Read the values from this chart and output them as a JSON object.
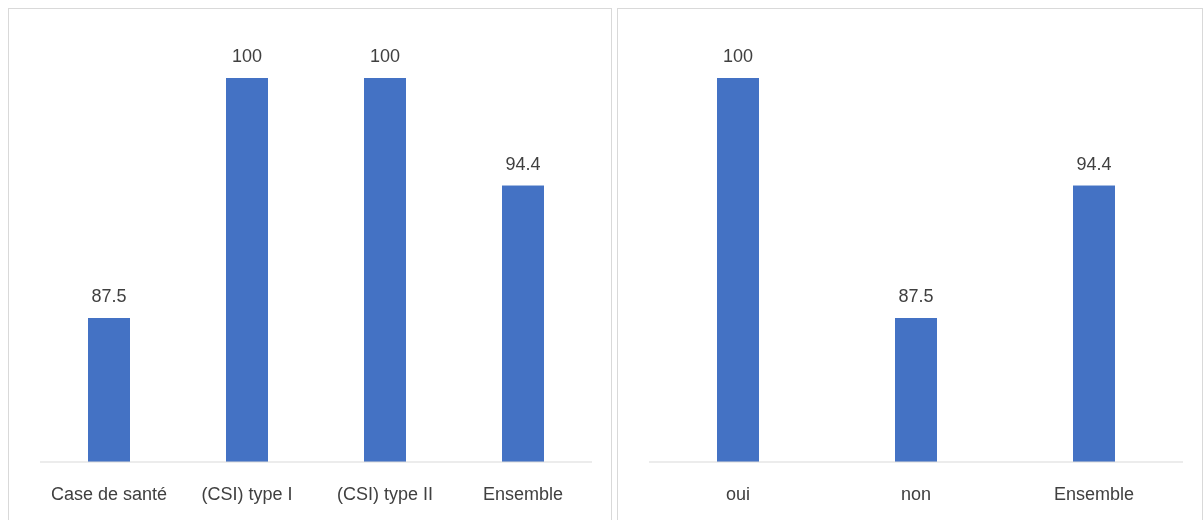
{
  "chart_data": [
    {
      "type": "bar",
      "categories": [
        "Case de santé",
        "(CSI) type I",
        "(CSI) type II",
        "Ensemble"
      ],
      "values": [
        87.5,
        100,
        100,
        94.4
      ],
      "color": "#4472c4",
      "ylim": [
        80,
        100
      ],
      "data_labels": true
    },
    {
      "type": "bar",
      "categories": [
        "oui",
        "non",
        "Ensemble"
      ],
      "values": [
        100,
        87.5,
        94.4
      ],
      "color": "#4472c4",
      "ylim": [
        80,
        100
      ],
      "data_labels": true
    }
  ]
}
